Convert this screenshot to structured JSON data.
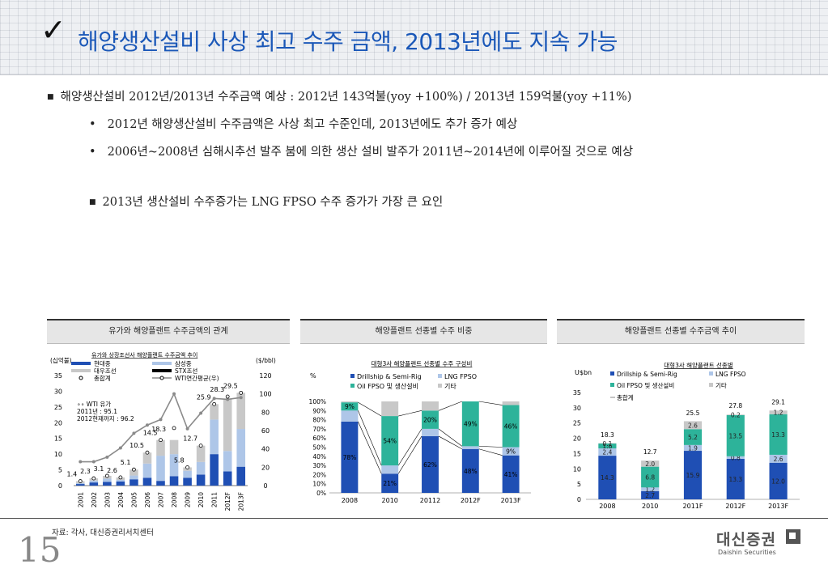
{
  "slide": {
    "title": "해양생산설비 사상 최고 수주 금액, 2013년에도 지속 가능",
    "bullets": {
      "b1": "해양생산설비 2012년/2013년 수주금액 예상 : 2012년 143억불(yoy +100%) / 2013년 159억불(yoy +11%)",
      "b2": "2012년 해양생산설비 수주금액은 사상 최고 수준인데, 2013년에도 추가 증가 예상",
      "b3": "2006년~2008년 심해시추선 발주 붐에 의한 생산 설비 발주가 2011년~2014년에 이루어질 것으로 예상",
      "b4": "2013년 생산설비 수주증가는 LNG FPSO 수주 증가가 가장 큰 요인"
    },
    "source": "자료: 각사, 대신증권리서치센터",
    "page_number": "15",
    "logo_name": "대신증권",
    "logo_sub": "Daishin Securities"
  },
  "panels": {
    "p1_title": "유가와 해양플랜트 수주금액의 관계",
    "p2_title": "해양플랜트 선종별 수주 비중",
    "p3_title": "해양플랜트 선종별 수주금액 추이"
  },
  "chart_data": [
    {
      "type": "bar",
      "title": "유가와 상장조선사 해양플랜트 수주금액 추이",
      "y_left_label": "(십억불)",
      "y_right_label": "($/bbl)",
      "ylim_left": [
        0,
        35
      ],
      "ylim_right": [
        0,
        120
      ],
      "y_left_ticks": [
        "0",
        "5",
        "10",
        "15",
        "20",
        "25",
        "30",
        "35"
      ],
      "y_right_ticks": [
        "0",
        "20",
        "40",
        "60",
        "80",
        "100",
        "120"
      ],
      "categories": [
        "2001",
        "2002",
        "2003",
        "2004",
        "2005",
        "2006",
        "2007",
        "2008",
        "2009",
        "2010",
        "2011",
        "2012F",
        "2013F"
      ],
      "series": [
        {
          "name": "현대중",
          "color": "#1f4fb4",
          "values": [
            0.5,
            1.0,
            1.2,
            1.3,
            2.0,
            2.5,
            1.5,
            3.0,
            2.5,
            3.5,
            10.0,
            4.5,
            6.0
          ]
        },
        {
          "name": "삼성중",
          "color": "#aec6e8",
          "values": [
            0.3,
            0.6,
            1.0,
            0.5,
            1.2,
            4.5,
            8.0,
            7.0,
            2.2,
            4.0,
            11.0,
            6.5,
            12.0
          ]
        },
        {
          "name": "대우조선",
          "color": "#c8c8c8",
          "values": [
            0.6,
            0.7,
            0.9,
            0.8,
            1.9,
            3.5,
            5.0,
            4.5,
            1.1,
            5.2,
            4.9,
            16.6,
            11.5
          ]
        }
      ],
      "total_label": "총합계",
      "totals": [
        1.4,
        2.3,
        3.1,
        2.6,
        5.1,
        10.5,
        14.5,
        18.3,
        5.8,
        12.7,
        25.9,
        28.3,
        29.5
      ],
      "stx_label": "STX조선",
      "wti_label": "WTI연간평균(우)",
      "wti": [
        26,
        26,
        31,
        41,
        57,
        66,
        72,
        100,
        62,
        79,
        95,
        94,
        96
      ],
      "annotation": [
        "WTI 유가",
        "2011년 : 95.1",
        "2012현재까지 : 96.2"
      ]
    },
    {
      "type": "bar",
      "title": "대형3사 해양플랜트 선종별 수주 구성비",
      "ylabel": "%",
      "ylim": [
        0,
        100
      ],
      "y_ticks": [
        "0%",
        "10%",
        "20%",
        "30%",
        "40%",
        "50%",
        "60%",
        "70%",
        "80%",
        "90%",
        "100%"
      ],
      "categories": [
        "2008",
        "2010",
        "20112",
        "2012F",
        "2013F"
      ],
      "series": [
        {
          "name": "Drillship & Semi-Rig",
          "color": "#1f4fb4",
          "values": [
            78,
            21,
            62,
            48,
            41
          ]
        },
        {
          "name": "LNG FPSO",
          "color": "#aec6e8",
          "values": [
            12,
            9,
            8,
            3,
            9
          ]
        },
        {
          "name": "Oil FPSO 및 생산설비",
          "color": "#2db39a",
          "values": [
            9,
            54,
            20,
            49,
            46
          ]
        },
        {
          "name": "기타",
          "color": "#c8c8c8",
          "values": [
            1,
            16,
            10,
            0,
            4
          ]
        }
      ],
      "labels": {
        "Drillship & Semi-Rig": [
          "78%",
          "21%",
          "62%",
          "48%",
          "41%"
        ],
        "Oil FPSO 및 생산설비": [
          "9%",
          "54%",
          "20%",
          "49%",
          "46%"
        ],
        "LNG FPSO": [
          "",
          "",
          "",
          "",
          "9%"
        ]
      }
    },
    {
      "type": "bar",
      "title": "대형3사 해양플랜트 선종별",
      "ylabel": "U$bn",
      "ylim": [
        0,
        35
      ],
      "y_ticks": [
        "0",
        "5",
        "10",
        "15",
        "20",
        "25",
        "30",
        "35"
      ],
      "categories": [
        "2008",
        "2010",
        "2011F",
        "2012F",
        "2013F"
      ],
      "series": [
        {
          "name": "Drillship & Semi-Rig",
          "color": "#1f4fb4",
          "values": [
            14.3,
            2.7,
            15.9,
            13.3,
            12.0
          ]
        },
        {
          "name": "LNG FPSO",
          "color": "#aec6e8",
          "values": [
            2.4,
            1.2,
            1.9,
            0.8,
            2.6
          ]
        },
        {
          "name": "Oil FPSO 및 생산설비",
          "color": "#2db39a",
          "values": [
            1.6,
            6.8,
            5.2,
            13.5,
            13.3
          ]
        },
        {
          "name": "기타",
          "color": "#c8c8c8",
          "values": [
            0.1,
            2.0,
            2.6,
            0.2,
            1.2
          ]
        }
      ],
      "value_labels": {
        "Drillship & Semi-Rig": [
          "14.3",
          "2.7",
          "15.9",
          "13.3",
          "12.0"
        ],
        "LNG FPSO": [
          "2.4",
          "1.2",
          "1.9",
          "0.8",
          "2.6"
        ],
        "Oil FPSO 및 생산설비": [
          "1.6",
          "6.8",
          "5.2",
          "13.5",
          "13.3"
        ],
        "기타": [
          "0.1",
          "2.0",
          "2.6",
          "0.2",
          "1.2"
        ]
      },
      "total_label": "총합계",
      "totals": [
        18.3,
        12.7,
        25.5,
        27.8,
        29.1
      ]
    }
  ]
}
